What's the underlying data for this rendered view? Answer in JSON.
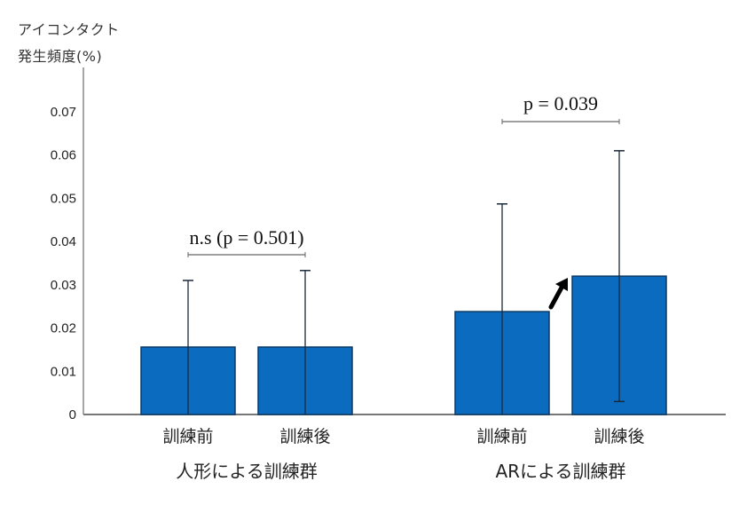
{
  "chart_data": {
    "type": "bar",
    "title": "",
    "ylabel": "アイコンタクト発生頻度(%)",
    "ylabel_lines": [
      "アイコンタクト",
      "発生頻度(%)"
    ],
    "xlabel": "",
    "ylim": [
      0,
      0.07
    ],
    "yticks": [
      "0",
      "0.01",
      "0.02",
      "0.03",
      "0.04",
      "0.05",
      "0.06",
      "0.07"
    ],
    "grid": false,
    "groups": [
      {
        "label": "人形による訓練群",
        "categories": [
          "訓練前",
          "訓練後"
        ],
        "values": [
          0.0156,
          0.0156
        ],
        "error_upper": [
          0.031,
          0.0333
        ],
        "error_lower": [
          0.0,
          0.0
        ],
        "annotation": "n.s (p = 0.501)"
      },
      {
        "label": "ARによる訓練群",
        "categories": [
          "訓練前",
          "訓練後"
        ],
        "values": [
          0.0238,
          0.032
        ],
        "error_upper": [
          0.0487,
          0.061
        ],
        "error_lower": [
          0.0,
          0.003
        ],
        "annotation": "p = 0.039",
        "arrow": "increase"
      }
    ],
    "bar_color": "#0a6bbf",
    "bar_edge_color": "#0b3a66"
  }
}
